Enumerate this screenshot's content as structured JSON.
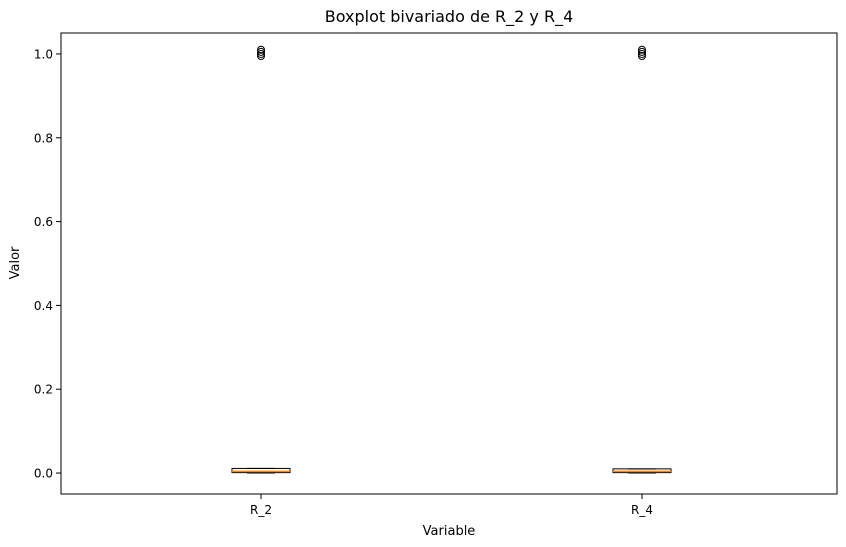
{
  "chart_data": {
    "type": "boxplot",
    "title": "Boxplot bivariado de R_2 y R_4",
    "xlabel": "Variable",
    "ylabel": "Valor",
    "categories": [
      "R_2",
      "R_4"
    ],
    "ylim": [
      -0.05,
      1.05
    ],
    "yticks": [
      0.0,
      0.2,
      0.4,
      0.6,
      0.8,
      1.0
    ],
    "ytick_labels": [
      "0.0",
      "0.2",
      "0.4",
      "0.6",
      "0.8",
      "1.0"
    ],
    "grid": false,
    "boxes": [
      {
        "name": "R_2",
        "whisker_low": 0.0,
        "q1": 0.001,
        "median": 0.004,
        "q3": 0.011,
        "whisker_high": 0.011,
        "outliers": [
          0.995,
          1.0,
          1.005,
          1.01
        ]
      },
      {
        "name": "R_4",
        "whisker_low": 0.0,
        "q1": 0.001,
        "median": 0.004,
        "q3": 0.01,
        "whisker_high": 0.01,
        "outliers": [
          0.995,
          1.0,
          1.005,
          1.01
        ]
      }
    ],
    "colors": {
      "box_edge": "#000000",
      "median": "#ff7f0e",
      "flier_edge": "#000000",
      "axes": "#000000"
    }
  }
}
